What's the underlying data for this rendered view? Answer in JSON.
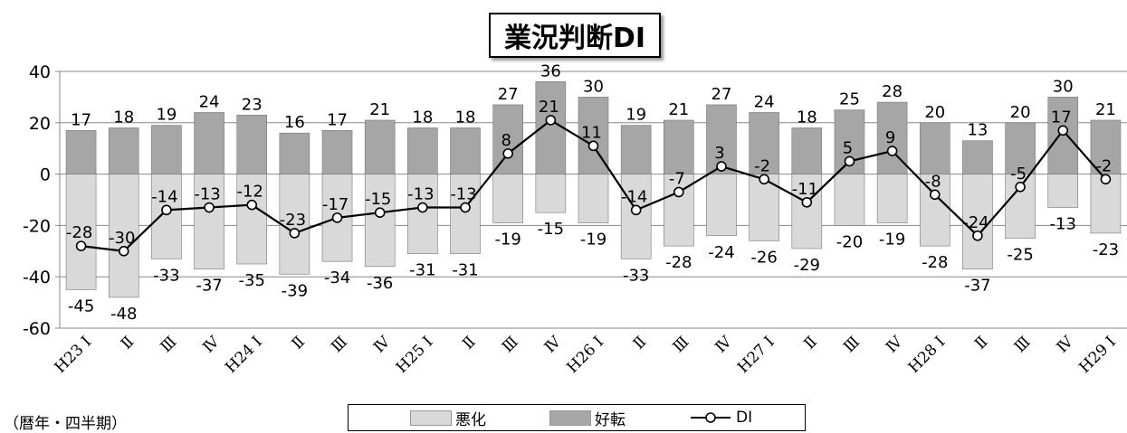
{
  "chart_data": {
    "type": "bar",
    "title": "業況判断DI",
    "xlabel": "（暦年・四半期）",
    "ylabel": "",
    "ylim": [
      -60,
      40
    ],
    "yticks": [
      -60,
      -40,
      -20,
      0,
      20,
      40
    ],
    "categories": [
      "H23 I",
      "Ⅱ",
      "Ⅲ",
      "Ⅳ",
      "H24 I",
      "Ⅱ",
      "Ⅲ",
      "Ⅳ",
      "H25 I",
      "Ⅱ",
      "Ⅲ",
      "Ⅳ",
      "H26 I",
      "Ⅱ",
      "Ⅲ",
      "Ⅳ",
      "H27 I",
      "Ⅱ",
      "Ⅲ",
      "Ⅳ",
      "H28 I",
      "Ⅱ",
      "Ⅲ",
      "Ⅳ",
      "H29 I"
    ],
    "series": [
      {
        "name": "悪化",
        "type": "bar",
        "color": "#d9d9d9",
        "values": [
          -45,
          -48,
          -33,
          -37,
          -35,
          -39,
          -34,
          -36,
          -31,
          -31,
          -19,
          -15,
          -19,
          -33,
          -28,
          -24,
          -26,
          -29,
          -20,
          -19,
          -28,
          -37,
          -25,
          -13,
          -23
        ]
      },
      {
        "name": "好転",
        "type": "bar",
        "color": "#a6a6a6",
        "values": [
          17,
          18,
          19,
          24,
          23,
          16,
          17,
          21,
          18,
          18,
          27,
          36,
          30,
          19,
          21,
          27,
          24,
          18,
          25,
          28,
          20,
          13,
          20,
          30,
          21
        ]
      },
      {
        "name": "DI",
        "type": "line",
        "color": "#000000",
        "values": [
          -28,
          -30,
          -14,
          -13,
          -12,
          -23,
          -17,
          -15,
          -13,
          -13,
          8,
          21,
          11,
          -14,
          -7,
          3,
          -2,
          -11,
          5,
          9,
          -8,
          -24,
          -5,
          17,
          -2
        ]
      }
    ],
    "grid": true,
    "legend": "bottom"
  }
}
